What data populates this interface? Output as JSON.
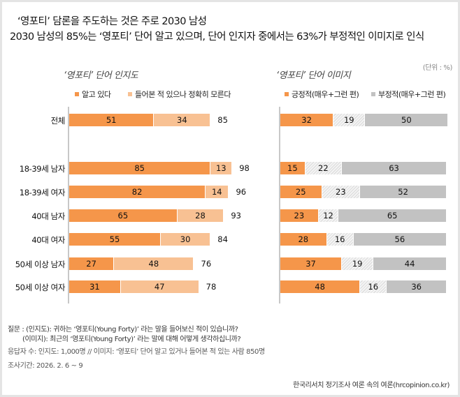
{
  "header": {
    "title_line1": "‘영포티’ 담론을 주도하는 것은 주로 2030 남성",
    "title_line2": "2030 남성의 85%는 ‘영포티’ 단어 알고 있으며, 단어 인지자 중에서는 63%가 부정적인 이미지로 인식",
    "unit": "(단위 : %)"
  },
  "colors": {
    "orange": "#f5964a",
    "light_orange": "#f8c193",
    "gray": "#c2c2c2",
    "hatch": "#dadada"
  },
  "chart_data": [
    {
      "type": "bar",
      "stacked": true,
      "orientation": "horizontal",
      "title": "‘영포티’ 단어 인지도",
      "categories": [
        "전체",
        "18-39세 남자",
        "18-39세 여자",
        "40대 남자",
        "40대 여자",
        "50세 이상 남자",
        "50세 이상 여자"
      ],
      "series": [
        {
          "name": "알고 있다",
          "values": [
            51,
            85,
            82,
            65,
            55,
            27,
            31
          ],
          "color": "#f5964a"
        },
        {
          "name": "들어본 적 있으나 정확히 모른다",
          "values": [
            34,
            13,
            14,
            28,
            30,
            48,
            47
          ],
          "color": "#f8c193"
        }
      ],
      "totals": [
        85,
        98,
        96,
        93,
        84,
        76,
        78
      ],
      "legend": "top"
    },
    {
      "type": "bar",
      "stacked": true,
      "orientation": "horizontal",
      "title": "‘영포티’ 단어 이미지",
      "categories": [
        "전체",
        "18-39세 남자",
        "18-39세 여자",
        "40대 남자",
        "40대 여자",
        "50세 이상 남자",
        "50세 이상 여자"
      ],
      "series": [
        {
          "name": "긍정적(매우+그런 편)",
          "values": [
            32,
            15,
            25,
            23,
            28,
            37,
            48
          ],
          "color": "#f5964a"
        },
        {
          "values": [
            19,
            22,
            23,
            12,
            16,
            19,
            16
          ],
          "color": "hatched"
        },
        {
          "name": "부정적(매우+그런 편)",
          "values": [
            50,
            63,
            52,
            65,
            56,
            44,
            36
          ],
          "color": "#c2c2c2"
        }
      ],
      "legend": "top"
    }
  ],
  "footer": {
    "q1": "질문 : (인지도): 귀하는 ‘영포티(Young Forty)’ 라는 말을 들어보신 적이 있습니까?",
    "q2": "(이미지): 최근의 ‘영포티(Young Forty)’ 라는 말에 대해 어떻게 생각하십니까?",
    "respondents": "응답자 수: 인지도: 1,000명 // 이미지: ‘영포티’ 단어 알고 있거나 들어본 적 있는 사람 850명",
    "period": "조사기간: 2026.  2. 6 ~  9",
    "source": "한국리서치 정기조사 여론 속의 여론(hrcopinion.co.kr)"
  }
}
